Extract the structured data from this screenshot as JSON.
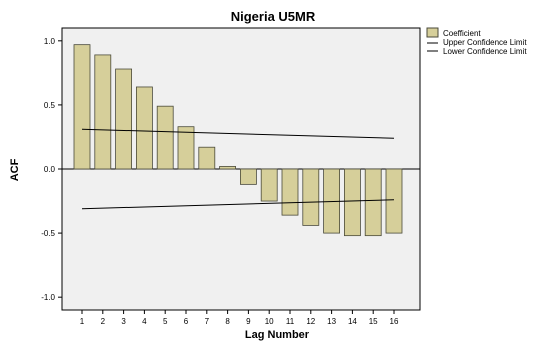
{
  "chart_data": {
    "type": "bar",
    "title": "Nigeria U5MR",
    "xlabel": "Lag Number",
    "ylabel": "ACF",
    "ylim": [
      -1.1,
      1.1
    ],
    "yticks": [
      "1.0",
      "0.5",
      "0.0",
      "-0.5",
      "-1.0"
    ],
    "ytick_values": [
      1.0,
      0.5,
      0.0,
      -0.5,
      -1.0
    ],
    "categories": [
      "1",
      "2",
      "3",
      "4",
      "5",
      "6",
      "7",
      "8",
      "9",
      "10",
      "11",
      "12",
      "13",
      "14",
      "15",
      "16"
    ],
    "series": [
      {
        "name": "Coefficient",
        "values": [
          0.97,
          0.89,
          0.78,
          0.64,
          0.49,
          0.33,
          0.17,
          0.02,
          -0.12,
          -0.25,
          -0.36,
          -0.44,
          -0.5,
          -0.52,
          -0.52,
          -0.5
        ]
      }
    ],
    "upper_confidence_limit": {
      "name": "Upper Confidence Limit",
      "start": 0.31,
      "end": 0.24
    },
    "lower_confidence_limit": {
      "name": "Lower Confidence Limit",
      "start": -0.31,
      "end": -0.24
    },
    "legend_position": "top-right",
    "grid": false,
    "colors": {
      "bar_fill": "#d6cf9a",
      "bar_stroke": "#4a4a3a",
      "plot_bg": "#f0f0f0",
      "line": "#000000"
    }
  }
}
